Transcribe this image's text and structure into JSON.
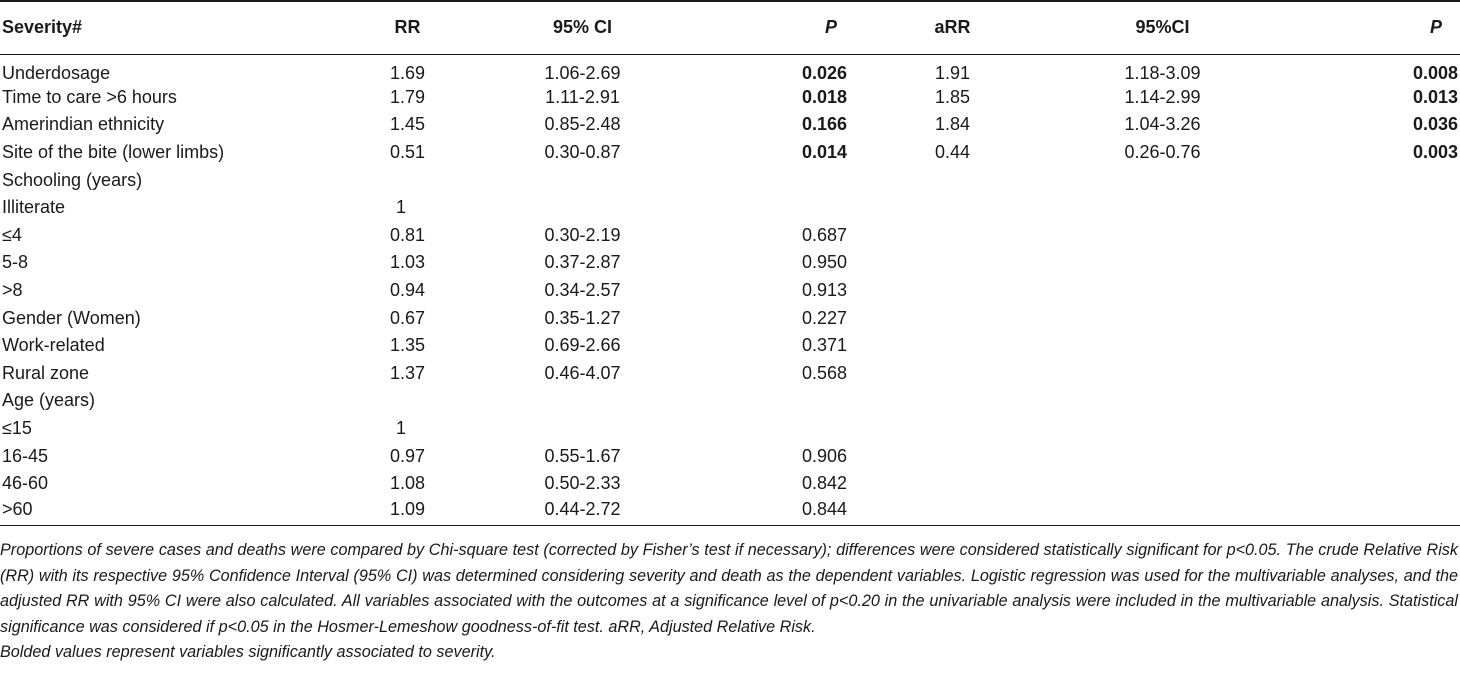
{
  "table": {
    "headers": [
      "Severity#",
      "RR",
      "95% CI",
      "P",
      "aRR",
      "95%CI",
      "P"
    ],
    "rows": [
      {
        "label": "Underdosage",
        "rr": "1.69",
        "ci": "1.06-2.69",
        "p": "0.026",
        "p_bold": true,
        "arr": "1.91",
        "aci": "1.18-3.09",
        "ap": "0.008",
        "ap_bold": true
      },
      {
        "label": "Time to care >6 hours",
        "rr": "1.79",
        "ci": "1.11-2.91",
        "p": "0.018",
        "p_bold": true,
        "arr": "1.85",
        "aci": "1.14-2.99",
        "ap": "0.013",
        "ap_bold": true
      },
      {
        "label": "Amerindian ethnicity",
        "rr": "1.45",
        "ci": "0.85-2.48",
        "p": "0.166",
        "p_bold": true,
        "arr": "1.84",
        "aci": "1.04-3.26",
        "ap": "0.036",
        "ap_bold": true
      },
      {
        "label": "Site of the bite (lower limbs)",
        "rr": "0.51",
        "ci": "0.30-0.87",
        "p": "0.014",
        "p_bold": true,
        "arr": "0.44",
        "aci": "0.26-0.76",
        "ap": "0.003",
        "ap_bold": true
      },
      {
        "label": "Schooling (years)",
        "rr": "",
        "ci": "",
        "p": "",
        "arr": "",
        "aci": "",
        "ap": ""
      },
      {
        "label": "Illiterate",
        "rr": "1",
        "ref": true,
        "ci": "",
        "p": "",
        "arr": "",
        "aci": "",
        "ap": ""
      },
      {
        "label": "≤4",
        "rr": "0.81",
        "ci": "0.30-2.19",
        "p": "0.687",
        "arr": "",
        "aci": "",
        "ap": ""
      },
      {
        "label": "5-8",
        "rr": "1.03",
        "ci": "0.37-2.87",
        "p": "0.950",
        "arr": "",
        "aci": "",
        "ap": ""
      },
      {
        "label": ">8",
        "rr": "0.94",
        "ci": "0.34-2.57",
        "p": "0.913",
        "arr": "",
        "aci": "",
        "ap": ""
      },
      {
        "label": "Gender (Women)",
        "rr": "0.67",
        "ci": "0.35-1.27",
        "p": "0.227",
        "arr": "",
        "aci": "",
        "ap": ""
      },
      {
        "label": "Work-related",
        "rr": "1.35",
        "ci": "0.69-2.66",
        "p": "0.371",
        "arr": "",
        "aci": "",
        "ap": ""
      },
      {
        "label": "Rural zone",
        "rr": "1.37",
        "ci": "0.46-4.07",
        "p": "0.568",
        "arr": "",
        "aci": "",
        "ap": ""
      },
      {
        "label": "Age (years)",
        "rr": "",
        "ci": "",
        "p": "",
        "arr": "",
        "aci": "",
        "ap": ""
      },
      {
        "label": "≤15",
        "rr": "1",
        "ref": true,
        "ci": "",
        "p": "",
        "arr": "",
        "aci": "",
        "ap": ""
      },
      {
        "label": "16-45",
        "rr": "0.97",
        "ci": "0.55-1.67",
        "p": "0.906",
        "arr": "",
        "aci": "",
        "ap": ""
      },
      {
        "label": "46-60",
        "rr": "1.08",
        "ci": "0.50-2.33",
        "p": "0.842",
        "arr": "",
        "aci": "",
        "ap": ""
      },
      {
        "label": ">60",
        "rr": "1.09",
        "ci": "0.44-2.72",
        "p": "0.844",
        "arr": "",
        "aci": "",
        "ap": ""
      }
    ]
  },
  "footnote": {
    "text": "Proportions of severe cases and deaths were compared by Chi-square test (corrected by Fisher’s test if necessary); differences were considered statistically significant for p<0.05. The crude Relative Risk (RR) with its respective 95% Confidence Interval (95% CI) was determined considering severity and death as the dependent variables. Logistic regression was used for the multivariable analyses, and the adjusted RR with 95% CI were also calculated. All variables associated with the outcomes at a significance level of p<0.20 in the univariable analysis were included in the multivariable analysis. Statistical significance was considered if p<0.05 in the Hosmer-Lemeshow goodness-of-fit test. aRR, Adjusted Relative Risk.",
    "bold_note": "Bolded values represent variables significantly associated to severity."
  }
}
